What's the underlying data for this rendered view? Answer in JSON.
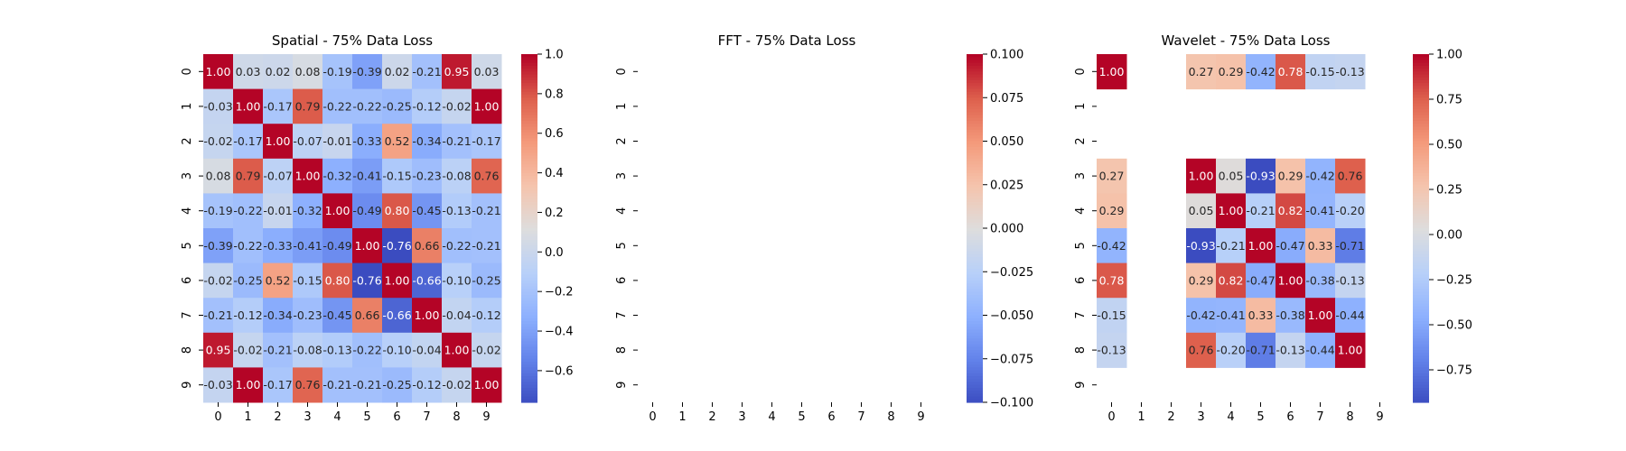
{
  "chart_data": [
    {
      "type": "heatmap",
      "title": "Spatial - 75% Data Loss",
      "x_tick_labels": [
        "0",
        "1",
        "2",
        "3",
        "4",
        "5",
        "6",
        "7",
        "8",
        "9"
      ],
      "y_tick_labels": [
        "0",
        "1",
        "2",
        "3",
        "4",
        "5",
        "6",
        "7",
        "8",
        "9"
      ],
      "value_range": [
        -0.76,
        1.0
      ],
      "colormap": "coolwarm",
      "colorbar_ticks": [
        -0.6,
        -0.4,
        -0.2,
        0.0,
        0.2,
        0.4,
        0.6,
        0.8,
        1.0
      ],
      "colorbar_tick_labels": [
        "−0.6",
        "−0.4",
        "−0.2",
        "0.0",
        "0.2",
        "0.4",
        "0.6",
        "0.8",
        "1.0"
      ],
      "cells": [
        [
          1.0,
          0.03,
          0.02,
          0.08,
          -0.19,
          -0.39,
          0.02,
          -0.21,
          0.95,
          0.03
        ],
        [
          -0.03,
          1.0,
          -0.17,
          0.79,
          -0.22,
          -0.22,
          -0.25,
          -0.12,
          -0.02,
          1.0
        ],
        [
          -0.02,
          -0.17,
          1.0,
          -0.07,
          -0.01,
          -0.33,
          0.52,
          -0.34,
          -0.21,
          -0.17
        ],
        [
          0.08,
          0.79,
          -0.07,
          1.0,
          -0.32,
          -0.41,
          -0.15,
          -0.23,
          -0.08,
          0.76
        ],
        [
          -0.19,
          -0.22,
          -0.01,
          -0.32,
          1.0,
          -0.49,
          0.8,
          -0.45,
          -0.13,
          -0.21
        ],
        [
          -0.39,
          -0.22,
          -0.33,
          -0.41,
          -0.49,
          1.0,
          -0.76,
          0.66,
          -0.22,
          -0.21
        ],
        [
          -0.02,
          -0.25,
          0.52,
          -0.15,
          0.8,
          -0.76,
          1.0,
          -0.66,
          -0.1,
          -0.25
        ],
        [
          -0.21,
          -0.12,
          -0.34,
          -0.23,
          -0.45,
          0.66,
          -0.66,
          1.0,
          -0.04,
          -0.12
        ],
        [
          0.95,
          -0.02,
          -0.21,
          -0.08,
          -0.13,
          -0.22,
          -0.1,
          -0.04,
          1.0,
          -0.02
        ],
        [
          -0.03,
          1.0,
          -0.17,
          0.76,
          -0.21,
          -0.21,
          -0.25,
          -0.12,
          -0.02,
          1.0
        ]
      ]
    },
    {
      "type": "heatmap",
      "title": "FFT - 75% Data Loss",
      "x_tick_labels": [
        "0",
        "1",
        "2",
        "3",
        "4",
        "5",
        "6",
        "7",
        "8",
        "9"
      ],
      "y_tick_labels": [
        "0",
        "1",
        "2",
        "3",
        "4",
        "5",
        "6",
        "7",
        "8",
        "9"
      ],
      "value_range": [
        -0.1,
        0.1
      ],
      "colormap": "coolwarm",
      "colorbar_ticks": [
        -0.1,
        -0.075,
        -0.05,
        -0.025,
        0.0,
        0.025,
        0.05,
        0.075,
        0.1
      ],
      "colorbar_tick_labels": [
        "−0.100",
        "−0.075",
        "−0.050",
        "−0.025",
        "0.000",
        "0.025",
        "0.050",
        "0.075",
        "0.100"
      ],
      "cells": [
        [
          null,
          null,
          null,
          null,
          null,
          null,
          null,
          null,
          null,
          null
        ],
        [
          null,
          null,
          null,
          null,
          null,
          null,
          null,
          null,
          null,
          null
        ],
        [
          null,
          null,
          null,
          null,
          null,
          null,
          null,
          null,
          null,
          null
        ],
        [
          null,
          null,
          null,
          null,
          null,
          null,
          null,
          null,
          null,
          null
        ],
        [
          null,
          null,
          null,
          null,
          null,
          null,
          null,
          null,
          null,
          null
        ],
        [
          null,
          null,
          null,
          null,
          null,
          null,
          null,
          null,
          null,
          null
        ],
        [
          null,
          null,
          null,
          null,
          null,
          null,
          null,
          null,
          null,
          null
        ],
        [
          null,
          null,
          null,
          null,
          null,
          null,
          null,
          null,
          null,
          null
        ],
        [
          null,
          null,
          null,
          null,
          null,
          null,
          null,
          null,
          null,
          null
        ],
        [
          null,
          null,
          null,
          null,
          null,
          null,
          null,
          null,
          null,
          null
        ]
      ]
    },
    {
      "type": "heatmap",
      "title": "Wavelet - 75% Data Loss",
      "x_tick_labels": [
        "0",
        "1",
        "2",
        "3",
        "4",
        "5",
        "6",
        "7",
        "8",
        "9"
      ],
      "y_tick_labels": [
        "0",
        "1",
        "2",
        "3",
        "4",
        "5",
        "6",
        "7",
        "8",
        "9"
      ],
      "value_range": [
        -0.93,
        1.0
      ],
      "colormap": "coolwarm",
      "colorbar_ticks": [
        -0.75,
        -0.5,
        -0.25,
        0.0,
        0.25,
        0.5,
        0.75,
        1.0
      ],
      "colorbar_tick_labels": [
        "−0.75",
        "−0.50",
        "−0.25",
        "0.00",
        "0.25",
        "0.50",
        "0.75",
        "1.00"
      ],
      "cells": [
        [
          1.0,
          null,
          null,
          0.27,
          0.29,
          -0.42,
          0.78,
          -0.15,
          -0.13,
          null
        ],
        [
          null,
          null,
          null,
          null,
          null,
          null,
          null,
          null,
          null,
          null
        ],
        [
          null,
          null,
          null,
          null,
          null,
          null,
          null,
          null,
          null,
          null
        ],
        [
          0.27,
          null,
          null,
          1.0,
          0.05,
          -0.93,
          0.29,
          -0.42,
          0.76,
          null
        ],
        [
          0.29,
          null,
          null,
          0.05,
          1.0,
          -0.21,
          0.82,
          -0.41,
          -0.2,
          null
        ],
        [
          -0.42,
          null,
          null,
          -0.93,
          -0.21,
          1.0,
          -0.47,
          0.33,
          -0.71,
          null
        ],
        [
          0.78,
          null,
          null,
          0.29,
          0.82,
          -0.47,
          1.0,
          -0.38,
          -0.13,
          null
        ],
        [
          -0.15,
          null,
          null,
          -0.42,
          -0.41,
          0.33,
          -0.38,
          1.0,
          -0.44,
          null
        ],
        [
          -0.13,
          null,
          null,
          0.76,
          -0.2,
          -0.71,
          -0.13,
          -0.44,
          1.0,
          null
        ],
        [
          null,
          null,
          null,
          null,
          null,
          null,
          null,
          null,
          null,
          null
        ]
      ]
    }
  ]
}
